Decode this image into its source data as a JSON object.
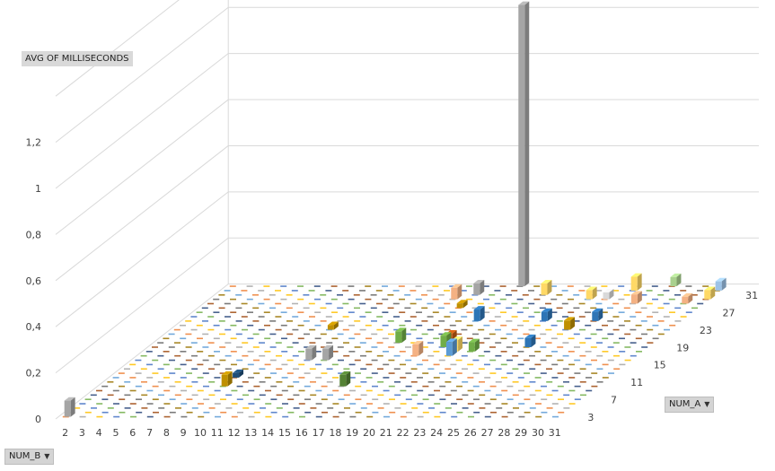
{
  "chart_data": {
    "type": "bar",
    "title": "",
    "value_field": "AVG OF MILLISECONDS",
    "x_field": "NUM_B",
    "depth_field": "NUM_A",
    "x_categories": [
      "2",
      "3",
      "4",
      "5",
      "6",
      "7",
      "8",
      "9",
      "10",
      "11",
      "12",
      "13",
      "14",
      "15",
      "16",
      "17",
      "18",
      "19",
      "20",
      "21",
      "22",
      "23",
      "24",
      "25",
      "26",
      "27",
      "28",
      "29",
      "30",
      "31"
    ],
    "depth_tick_labels": [
      "3",
      "7",
      "11",
      "15",
      "19",
      "23",
      "27",
      "31"
    ],
    "y_tick_labels": [
      "0",
      "0,2",
      "0,4",
      "0,6",
      "0,8",
      "1",
      "1,2"
    ],
    "ylim": [
      0,
      1.2
    ],
    "grid": true,
    "bars": [
      {
        "x": "2",
        "depth": 1,
        "value": 0.07,
        "color": "#a5a5a5"
      },
      {
        "x": "9",
        "depth": 8,
        "value": 0.05,
        "color": "#bf9000"
      },
      {
        "x": "16",
        "depth": 8,
        "value": 0.05,
        "color": "#548235"
      },
      {
        "x": "12",
        "depth": 14,
        "value": 0.05,
        "color": "#a5a5a5"
      },
      {
        "x": "13",
        "depth": 14,
        "value": 0.05,
        "color": "#a5a5a5"
      },
      {
        "x": "18",
        "depth": 15,
        "value": 0.05,
        "color": "#f4b183"
      },
      {
        "x": "20",
        "depth": 15,
        "value": 0.06,
        "color": "#5b9bd5"
      },
      {
        "x": "20",
        "depth": 16,
        "value": 0.05,
        "color": "#ffd966"
      },
      {
        "x": "21",
        "depth": 16,
        "value": 0.04,
        "color": "#70ad47"
      },
      {
        "x": "16",
        "depth": 18,
        "value": 0.05,
        "color": "#70ad47"
      },
      {
        "x": "19",
        "depth": 17,
        "value": 0.05,
        "color": "#70ad47"
      },
      {
        "x": "19",
        "depth": 18,
        "value": 0.04,
        "color": "#c55a11"
      },
      {
        "x": "24",
        "depth": 17,
        "value": 0.04,
        "color": "#2e75b6"
      },
      {
        "x": "19",
        "depth": 23,
        "value": 0.05,
        "color": "#2e75b6"
      },
      {
        "x": "23",
        "depth": 23,
        "value": 0.04,
        "color": "#2e75b6"
      },
      {
        "x": "25",
        "depth": 21,
        "value": 0.04,
        "color": "#bf9000"
      },
      {
        "x": "26",
        "depth": 23,
        "value": 0.04,
        "color": "#2e75b6"
      },
      {
        "x": "16",
        "depth": 28,
        "value": 0.05,
        "color": "#f4b183"
      },
      {
        "x": "17",
        "depth": 29,
        "value": 0.05,
        "color": "#a5a5a5"
      },
      {
        "x": "21",
        "depth": 29,
        "value": 0.05,
        "color": "#ffd966"
      },
      {
        "x": "24",
        "depth": 28,
        "value": 0.04,
        "color": "#ffd966"
      },
      {
        "x": "25",
        "depth": 28,
        "value": 0.03,
        "color": "#d9d9d9"
      },
      {
        "x": "26",
        "depth": 30,
        "value": 0.06,
        "color": "#ffd966"
      },
      {
        "x": "28",
        "depth": 31,
        "value": 0.04,
        "color": "#a9d18e"
      },
      {
        "x": "27",
        "depth": 27,
        "value": 0.04,
        "color": "#f4b183"
      },
      {
        "x": "31",
        "depth": 30,
        "value": 0.04,
        "color": "#9dc3e6"
      },
      {
        "x": "30",
        "depth": 27,
        "value": 0.03,
        "color": "#f4b183"
      },
      {
        "x": "31",
        "depth": 28,
        "value": 0.04,
        "color": "#ffd966"
      },
      {
        "x": "9",
        "depth": 10,
        "value": 0.02,
        "color": "#1f4e79"
      },
      {
        "x": "17",
        "depth": 26,
        "value": 0.02,
        "color": "#bf9000"
      },
      {
        "x": "11",
        "depth": 21,
        "value": 0.02,
        "color": "#bf9000"
      }
    ],
    "tall_bar": {
      "x": "19",
      "depth": 31,
      "value": 1.22,
      "color": "#a5a5a5"
    },
    "floor_dash_colors": [
      "#5b9bd5",
      "#ed7d31",
      "#a5a5a5",
      "#ffc000",
      "#4472c4",
      "#70ad47",
      "#264478",
      "#9e480e",
      "#636363",
      "#997300"
    ]
  },
  "controls": {
    "num_b_label": "NUM_B",
    "num_a_label": "NUM_A",
    "value_label": "AVG OF MILLISECONDS",
    "num_b_arrow": "▼",
    "num_a_arrow": "▼"
  }
}
